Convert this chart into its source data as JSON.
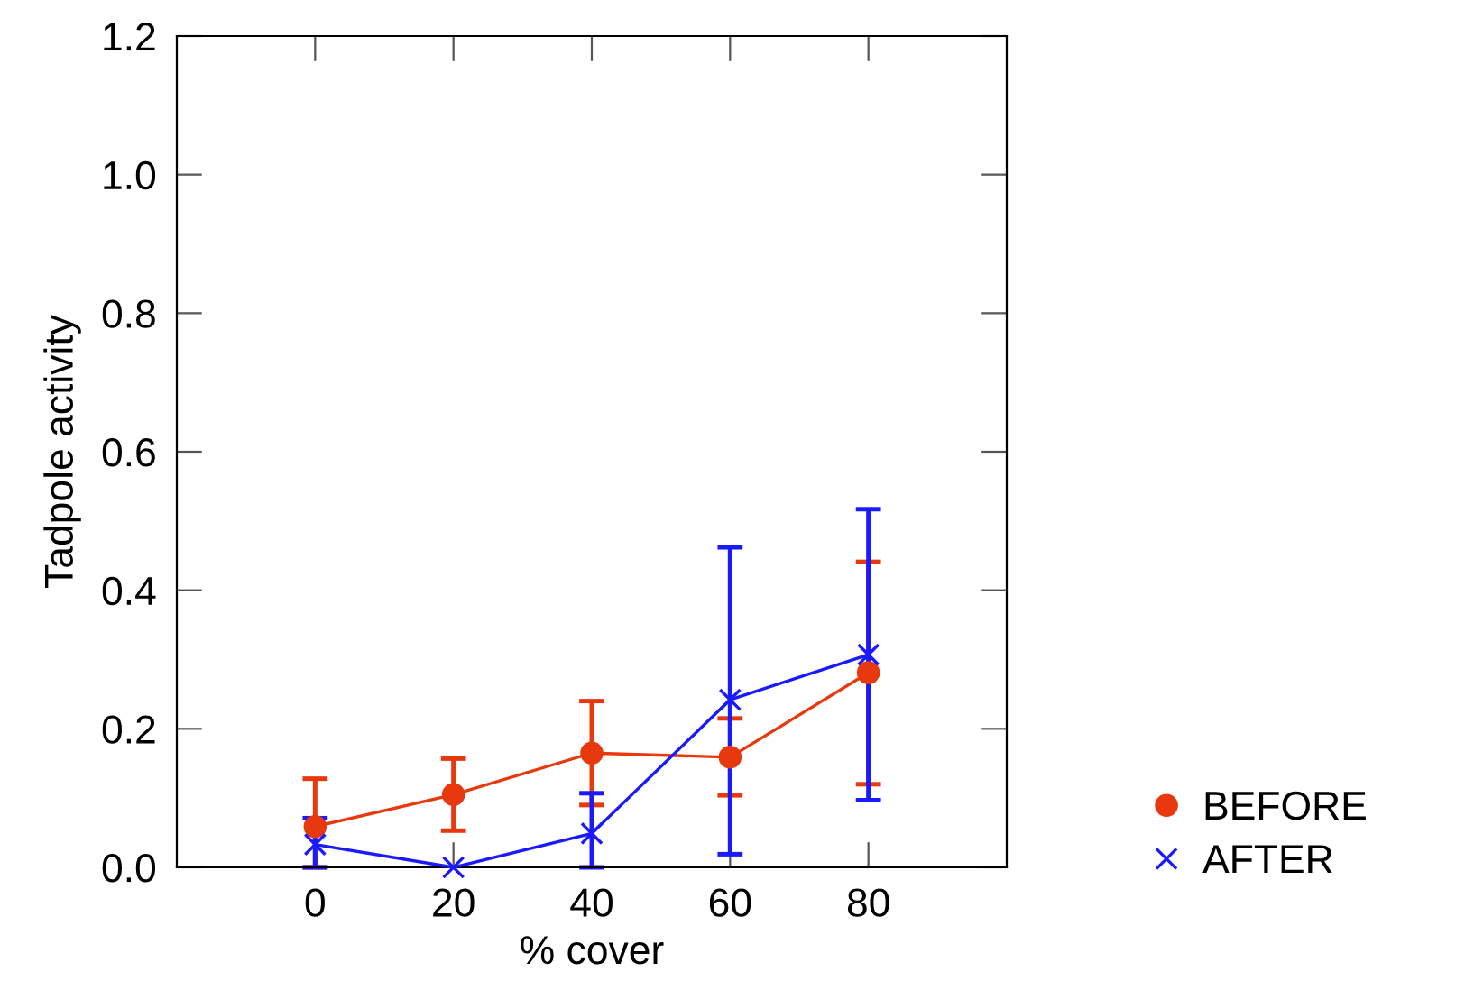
{
  "chart_data": {
    "type": "line",
    "xlabel": "% cover",
    "ylabel": "Tadpole activity",
    "x": [
      0,
      20,
      40,
      60,
      80
    ],
    "xlim": [
      -20,
      100
    ],
    "xticks": [
      0,
      20,
      40,
      60,
      80
    ],
    "ylim": [
      0,
      1.2
    ],
    "yticks": [
      {
        "value": 0,
        "label": "0.0"
      },
      {
        "value": 0.2,
        "label": "0.2"
      },
      {
        "value": 0.4,
        "label": "0.4"
      },
      {
        "value": 0.6,
        "label": "0.6"
      },
      {
        "value": 0.8,
        "label": "0.8"
      },
      {
        "value": 1.0,
        "label": "1.0"
      },
      {
        "value": 1.2,
        "label": "1.2"
      }
    ],
    "grid": false,
    "legend": "bottom right",
    "series": [
      {
        "name": "BEFORE",
        "color": "#e8380d",
        "marker": "circle",
        "values": [
          0.059,
          0.105,
          0.165,
          0.159,
          0.281
        ],
        "errors": [
          [
            0,
            0.128
          ],
          [
            0.053,
            0.157
          ],
          [
            0.09,
            0.24
          ],
          [
            0.104,
            0.215
          ],
          [
            0.12,
            0.441
          ]
        ]
      },
      {
        "name": "AFTER",
        "color": "#1a1aff",
        "marker": "cross",
        "values": [
          0.033,
          0,
          0.049,
          0.242,
          0.307
        ],
        "errors": [
          [
            0,
            0.071
          ],
          null,
          [
            0,
            0.107
          ],
          [
            0.019,
            0.462
          ],
          [
            0.097,
            0.517
          ]
        ]
      }
    ]
  }
}
